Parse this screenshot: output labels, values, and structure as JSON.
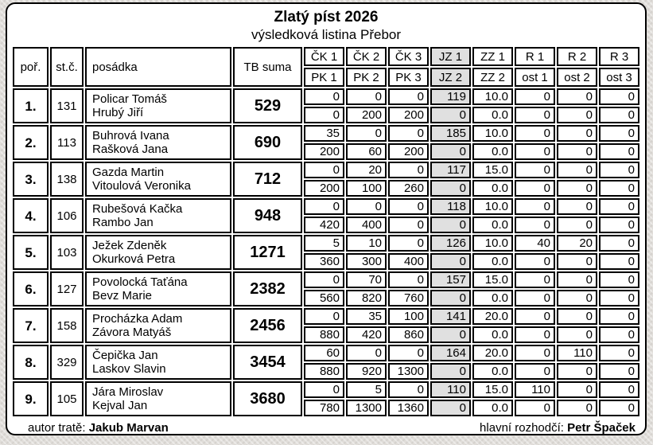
{
  "page": {
    "title": "Zlatý píst 2026",
    "subtitle": "výsledková listina Přebor",
    "footer": {
      "author_label": "autor tratě: ",
      "author_name": "Jakub Marvan",
      "referee_label": "hlavní rozhodčí: ",
      "referee_name": "Petr Špaček"
    }
  },
  "colors": {
    "highlight_cell": "#e0e0e0",
    "border": "#000000",
    "sheet_bg": "#ffffff"
  },
  "table": {
    "headers": {
      "rank": "poř.",
      "start_number": "st.č.",
      "crew": "posádka",
      "tb_sum": "TB suma"
    },
    "score_columns": [
      {
        "top": "ČK 1",
        "bottom": "PK 1",
        "highlight": false
      },
      {
        "top": "ČK 2",
        "bottom": "PK 2",
        "highlight": false
      },
      {
        "top": "ČK 3",
        "bottom": "PK 3",
        "highlight": false
      },
      {
        "top": "JZ 1",
        "bottom": "JZ 2",
        "highlight": true
      },
      {
        "top": "ZZ 1",
        "bottom": "ZZ 2",
        "highlight": false
      },
      {
        "top": "R 1",
        "bottom": "ost 1",
        "highlight": false
      },
      {
        "top": "R 2",
        "bottom": "ost 2",
        "highlight": false
      },
      {
        "top": "R 3",
        "bottom": "ost 3",
        "highlight": false
      }
    ],
    "rows": [
      {
        "rank": "1.",
        "start_number": "131",
        "crew": [
          "Policar Tomáš",
          "Hrubý Jiří"
        ],
        "tb_sum": "529",
        "top_values": [
          "0",
          "0",
          "0",
          "119",
          "10.0",
          "0",
          "0",
          "0"
        ],
        "bottom_values": [
          "0",
          "200",
          "200",
          "0",
          "0.0",
          "0",
          "0",
          "0"
        ]
      },
      {
        "rank": "2.",
        "start_number": "113",
        "crew": [
          "Buhrová Ivana",
          "Rašková Jana"
        ],
        "tb_sum": "690",
        "top_values": [
          "35",
          "0",
          "0",
          "185",
          "10.0",
          "0",
          "0",
          "0"
        ],
        "bottom_values": [
          "200",
          "60",
          "200",
          "0",
          "0.0",
          "0",
          "0",
          "0"
        ]
      },
      {
        "rank": "3.",
        "start_number": "138",
        "crew": [
          "Gazda Martin",
          "Vitoulová Veronika"
        ],
        "tb_sum": "712",
        "top_values": [
          "0",
          "20",
          "0",
          "117",
          "15.0",
          "0",
          "0",
          "0"
        ],
        "bottom_values": [
          "200",
          "100",
          "260",
          "0",
          "0.0",
          "0",
          "0",
          "0"
        ]
      },
      {
        "rank": "4.",
        "start_number": "106",
        "crew": [
          "Rubešová Kačka",
          "Rambo Jan"
        ],
        "tb_sum": "948",
        "top_values": [
          "0",
          "0",
          "0",
          "118",
          "10.0",
          "0",
          "0",
          "0"
        ],
        "bottom_values": [
          "420",
          "400",
          "0",
          "0",
          "0.0",
          "0",
          "0",
          "0"
        ]
      },
      {
        "rank": "5.",
        "start_number": "103",
        "crew": [
          "Ježek Zdeněk",
          "Okurková Petra"
        ],
        "tb_sum": "1271",
        "top_values": [
          "5",
          "10",
          "0",
          "126",
          "10.0",
          "40",
          "20",
          "0"
        ],
        "bottom_values": [
          "360",
          "300",
          "400",
          "0",
          "0.0",
          "0",
          "0",
          "0"
        ]
      },
      {
        "rank": "6.",
        "start_number": "127",
        "crew": [
          "Povolocká Taťána",
          "Bevz Marie"
        ],
        "tb_sum": "2382",
        "top_values": [
          "0",
          "70",
          "0",
          "157",
          "15.0",
          "0",
          "0",
          "0"
        ],
        "bottom_values": [
          "560",
          "820",
          "760",
          "0",
          "0.0",
          "0",
          "0",
          "0"
        ]
      },
      {
        "rank": "7.",
        "start_number": "158",
        "crew": [
          "Procházka Adam",
          "Závora Matyáš"
        ],
        "tb_sum": "2456",
        "top_values": [
          "0",
          "35",
          "100",
          "141",
          "20.0",
          "0",
          "0",
          "0"
        ],
        "bottom_values": [
          "880",
          "420",
          "860",
          "0",
          "0.0",
          "0",
          "0",
          "0"
        ]
      },
      {
        "rank": "8.",
        "start_number": "329",
        "crew": [
          "Čepička Jan",
          "Laskov Slavin"
        ],
        "tb_sum": "3454",
        "top_values": [
          "60",
          "0",
          "0",
          "164",
          "20.0",
          "0",
          "110",
          "0"
        ],
        "bottom_values": [
          "880",
          "920",
          "1300",
          "0",
          "0.0",
          "0",
          "0",
          "0"
        ]
      },
      {
        "rank": "9.",
        "start_number": "105",
        "crew": [
          "Jára Miroslav",
          "Kejval Jan"
        ],
        "tb_sum": "3680",
        "top_values": [
          "0",
          "5",
          "0",
          "110",
          "15.0",
          "110",
          "0",
          "0"
        ],
        "bottom_values": [
          "780",
          "1300",
          "1360",
          "0",
          "0.0",
          "0",
          "0",
          "0"
        ]
      }
    ]
  }
}
